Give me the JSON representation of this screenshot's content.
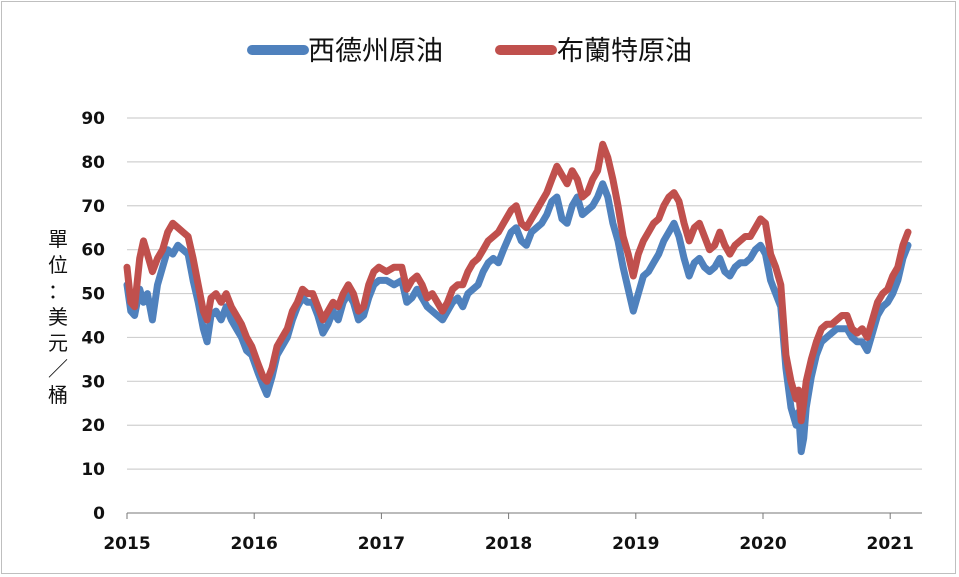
{
  "chart_data": {
    "type": "line",
    "xlabel": "",
    "ylabel": "單位：美元／桶",
    "ylim": [
      0,
      90
    ],
    "yticks": [
      0,
      10,
      20,
      30,
      40,
      50,
      60,
      70,
      80,
      90
    ],
    "xlim": [
      2015,
      2021.25
    ],
    "xticks": [
      2015,
      2016,
      2017,
      2018,
      2019,
      2020,
      2021
    ],
    "xtick_labels": [
      "2015",
      "2016",
      "2017",
      "2018",
      "2019",
      "2020",
      "2021"
    ],
    "grid": true,
    "legend": "top",
    "series": [
      {
        "name": "西德州原油",
        "color": "#4f81bd",
        "points": [
          [
            2015.0,
            52
          ],
          [
            2015.03,
            46
          ],
          [
            2015.06,
            45
          ],
          [
            2015.1,
            51
          ],
          [
            2015.13,
            48
          ],
          [
            2015.16,
            50
          ],
          [
            2015.2,
            44
          ],
          [
            2015.24,
            52
          ],
          [
            2015.28,
            56
          ],
          [
            2015.32,
            60
          ],
          [
            2015.36,
            59
          ],
          [
            2015.4,
            61
          ],
          [
            2015.44,
            60
          ],
          [
            2015.48,
            59
          ],
          [
            2015.52,
            53
          ],
          [
            2015.56,
            48
          ],
          [
            2015.6,
            42
          ],
          [
            2015.63,
            39
          ],
          [
            2015.66,
            45
          ],
          [
            2015.7,
            46
          ],
          [
            2015.74,
            44
          ],
          [
            2015.78,
            47
          ],
          [
            2015.82,
            44
          ],
          [
            2015.86,
            42
          ],
          [
            2015.9,
            40
          ],
          [
            2015.94,
            37
          ],
          [
            2015.98,
            36
          ],
          [
            2016.03,
            32
          ],
          [
            2016.07,
            29
          ],
          [
            2016.1,
            27
          ],
          [
            2016.14,
            31
          ],
          [
            2016.18,
            36
          ],
          [
            2016.22,
            38
          ],
          [
            2016.26,
            40
          ],
          [
            2016.3,
            44
          ],
          [
            2016.34,
            47
          ],
          [
            2016.38,
            49
          ],
          [
            2016.42,
            48
          ],
          [
            2016.46,
            48
          ],
          [
            2016.5,
            45
          ],
          [
            2016.54,
            41
          ],
          [
            2016.58,
            43
          ],
          [
            2016.62,
            46
          ],
          [
            2016.66,
            44
          ],
          [
            2016.7,
            48
          ],
          [
            2016.74,
            50
          ],
          [
            2016.78,
            48
          ],
          [
            2016.82,
            44
          ],
          [
            2016.86,
            45
          ],
          [
            2016.9,
            49
          ],
          [
            2016.94,
            52
          ],
          [
            2016.98,
            53
          ],
          [
            2017.04,
            53
          ],
          [
            2017.1,
            52
          ],
          [
            2017.16,
            53
          ],
          [
            2017.2,
            48
          ],
          [
            2017.24,
            49
          ],
          [
            2017.28,
            51
          ],
          [
            2017.32,
            49
          ],
          [
            2017.36,
            47
          ],
          [
            2017.4,
            46
          ],
          [
            2017.44,
            45
          ],
          [
            2017.48,
            44
          ],
          [
            2017.52,
            46
          ],
          [
            2017.56,
            48
          ],
          [
            2017.6,
            49
          ],
          [
            2017.64,
            47
          ],
          [
            2017.68,
            50
          ],
          [
            2017.72,
            51
          ],
          [
            2017.76,
            52
          ],
          [
            2017.8,
            55
          ],
          [
            2017.84,
            57
          ],
          [
            2017.88,
            58
          ],
          [
            2017.92,
            57
          ],
          [
            2017.96,
            60
          ],
          [
            2018.02,
            64
          ],
          [
            2018.06,
            65
          ],
          [
            2018.1,
            62
          ],
          [
            2018.14,
            61
          ],
          [
            2018.18,
            64
          ],
          [
            2018.22,
            65
          ],
          [
            2018.26,
            66
          ],
          [
            2018.3,
            68
          ],
          [
            2018.34,
            71
          ],
          [
            2018.38,
            72
          ],
          [
            2018.42,
            67
          ],
          [
            2018.46,
            66
          ],
          [
            2018.5,
            70
          ],
          [
            2018.54,
            72
          ],
          [
            2018.58,
            68
          ],
          [
            2018.62,
            69
          ],
          [
            2018.66,
            70
          ],
          [
            2018.7,
            72
          ],
          [
            2018.74,
            75
          ],
          [
            2018.78,
            72
          ],
          [
            2018.82,
            66
          ],
          [
            2018.86,
            62
          ],
          [
            2018.9,
            56
          ],
          [
            2018.94,
            51
          ],
          [
            2018.98,
            46
          ],
          [
            2019.02,
            50
          ],
          [
            2019.06,
            54
          ],
          [
            2019.1,
            55
          ],
          [
            2019.14,
            57
          ],
          [
            2019.18,
            59
          ],
          [
            2019.22,
            62
          ],
          [
            2019.26,
            64
          ],
          [
            2019.3,
            66
          ],
          [
            2019.34,
            63
          ],
          [
            2019.38,
            58
          ],
          [
            2019.42,
            54
          ],
          [
            2019.46,
            57
          ],
          [
            2019.5,
            58
          ],
          [
            2019.54,
            56
          ],
          [
            2019.58,
            55
          ],
          [
            2019.62,
            56
          ],
          [
            2019.66,
            58
          ],
          [
            2019.7,
            55
          ],
          [
            2019.74,
            54
          ],
          [
            2019.78,
            56
          ],
          [
            2019.82,
            57
          ],
          [
            2019.86,
            57
          ],
          [
            2019.9,
            58
          ],
          [
            2019.94,
            60
          ],
          [
            2019.98,
            61
          ],
          [
            2020.02,
            59
          ],
          [
            2020.06,
            53
          ],
          [
            2020.1,
            50
          ],
          [
            2020.14,
            47
          ],
          [
            2020.18,
            33
          ],
          [
            2020.22,
            24
          ],
          [
            2020.26,
            20
          ],
          [
            2020.28,
            23
          ],
          [
            2020.3,
            14
          ],
          [
            2020.32,
            17
          ],
          [
            2020.34,
            24
          ],
          [
            2020.38,
            31
          ],
          [
            2020.42,
            36
          ],
          [
            2020.46,
            39
          ],
          [
            2020.5,
            40
          ],
          [
            2020.54,
            41
          ],
          [
            2020.58,
            42
          ],
          [
            2020.62,
            42
          ],
          [
            2020.66,
            42
          ],
          [
            2020.7,
            40
          ],
          [
            2020.74,
            39
          ],
          [
            2020.78,
            39
          ],
          [
            2020.82,
            37
          ],
          [
            2020.86,
            41
          ],
          [
            2020.9,
            45
          ],
          [
            2020.94,
            47
          ],
          [
            2020.98,
            48
          ],
          [
            2021.02,
            50
          ],
          [
            2021.06,
            53
          ],
          [
            2021.1,
            58
          ],
          [
            2021.14,
            61
          ]
        ]
      },
      {
        "name": "布蘭特原油",
        "color": "#c0504d",
        "points": [
          [
            2015.0,
            56
          ],
          [
            2015.03,
            48
          ],
          [
            2015.06,
            47
          ],
          [
            2015.1,
            58
          ],
          [
            2015.13,
            62
          ],
          [
            2015.16,
            59
          ],
          [
            2015.2,
            55
          ],
          [
            2015.24,
            58
          ],
          [
            2015.28,
            60
          ],
          [
            2015.32,
            64
          ],
          [
            2015.36,
            66
          ],
          [
            2015.4,
            65
          ],
          [
            2015.44,
            64
          ],
          [
            2015.48,
            63
          ],
          [
            2015.52,
            58
          ],
          [
            2015.56,
            52
          ],
          [
            2015.6,
            46
          ],
          [
            2015.63,
            44
          ],
          [
            2015.66,
            49
          ],
          [
            2015.7,
            50
          ],
          [
            2015.74,
            48
          ],
          [
            2015.78,
            50
          ],
          [
            2015.82,
            47
          ],
          [
            2015.86,
            45
          ],
          [
            2015.9,
            43
          ],
          [
            2015.94,
            40
          ],
          [
            2015.98,
            38
          ],
          [
            2016.03,
            34
          ],
          [
            2016.07,
            31
          ],
          [
            2016.1,
            30
          ],
          [
            2016.14,
            33
          ],
          [
            2016.18,
            38
          ],
          [
            2016.22,
            40
          ],
          [
            2016.26,
            42
          ],
          [
            2016.3,
            46
          ],
          [
            2016.34,
            48
          ],
          [
            2016.38,
            51
          ],
          [
            2016.42,
            50
          ],
          [
            2016.46,
            50
          ],
          [
            2016.5,
            47
          ],
          [
            2016.54,
            44
          ],
          [
            2016.58,
            46
          ],
          [
            2016.62,
            48
          ],
          [
            2016.66,
            47
          ],
          [
            2016.7,
            50
          ],
          [
            2016.74,
            52
          ],
          [
            2016.78,
            50
          ],
          [
            2016.82,
            46
          ],
          [
            2016.86,
            47
          ],
          [
            2016.9,
            52
          ],
          [
            2016.94,
            55
          ],
          [
            2016.98,
            56
          ],
          [
            2017.04,
            55
          ],
          [
            2017.1,
            56
          ],
          [
            2017.16,
            56
          ],
          [
            2017.2,
            51
          ],
          [
            2017.24,
            53
          ],
          [
            2017.28,
            54
          ],
          [
            2017.32,
            52
          ],
          [
            2017.36,
            49
          ],
          [
            2017.4,
            50
          ],
          [
            2017.44,
            48
          ],
          [
            2017.48,
            46
          ],
          [
            2017.52,
            48
          ],
          [
            2017.56,
            51
          ],
          [
            2017.6,
            52
          ],
          [
            2017.64,
            52
          ],
          [
            2017.68,
            55
          ],
          [
            2017.72,
            57
          ],
          [
            2017.76,
            58
          ],
          [
            2017.8,
            60
          ],
          [
            2017.84,
            62
          ],
          [
            2017.88,
            63
          ],
          [
            2017.92,
            64
          ],
          [
            2017.96,
            66
          ],
          [
            2018.02,
            69
          ],
          [
            2018.06,
            70
          ],
          [
            2018.1,
            66
          ],
          [
            2018.14,
            65
          ],
          [
            2018.18,
            67
          ],
          [
            2018.22,
            69
          ],
          [
            2018.26,
            71
          ],
          [
            2018.3,
            73
          ],
          [
            2018.34,
            76
          ],
          [
            2018.38,
            79
          ],
          [
            2018.42,
            77
          ],
          [
            2018.46,
            75
          ],
          [
            2018.5,
            78
          ],
          [
            2018.54,
            76
          ],
          [
            2018.58,
            72
          ],
          [
            2018.62,
            73
          ],
          [
            2018.66,
            76
          ],
          [
            2018.7,
            78
          ],
          [
            2018.74,
            84
          ],
          [
            2018.78,
            81
          ],
          [
            2018.82,
            76
          ],
          [
            2018.86,
            70
          ],
          [
            2018.9,
            63
          ],
          [
            2018.94,
            59
          ],
          [
            2018.98,
            54
          ],
          [
            2019.02,
            59
          ],
          [
            2019.06,
            62
          ],
          [
            2019.1,
            64
          ],
          [
            2019.14,
            66
          ],
          [
            2019.18,
            67
          ],
          [
            2019.22,
            70
          ],
          [
            2019.26,
            72
          ],
          [
            2019.3,
            73
          ],
          [
            2019.34,
            71
          ],
          [
            2019.38,
            66
          ],
          [
            2019.42,
            62
          ],
          [
            2019.46,
            65
          ],
          [
            2019.5,
            66
          ],
          [
            2019.54,
            63
          ],
          [
            2019.58,
            60
          ],
          [
            2019.62,
            61
          ],
          [
            2019.66,
            64
          ],
          [
            2019.7,
            61
          ],
          [
            2019.74,
            59
          ],
          [
            2019.78,
            61
          ],
          [
            2019.82,
            62
          ],
          [
            2019.86,
            63
          ],
          [
            2019.9,
            63
          ],
          [
            2019.94,
            65
          ],
          [
            2019.98,
            67
          ],
          [
            2020.02,
            66
          ],
          [
            2020.06,
            59
          ],
          [
            2020.1,
            56
          ],
          [
            2020.14,
            52
          ],
          [
            2020.18,
            36
          ],
          [
            2020.22,
            30
          ],
          [
            2020.26,
            26
          ],
          [
            2020.28,
            28
          ],
          [
            2020.3,
            21
          ],
          [
            2020.32,
            25
          ],
          [
            2020.34,
            30
          ],
          [
            2020.38,
            35
          ],
          [
            2020.42,
            39
          ],
          [
            2020.46,
            42
          ],
          [
            2020.5,
            43
          ],
          [
            2020.54,
            43
          ],
          [
            2020.58,
            44
          ],
          [
            2020.62,
            45
          ],
          [
            2020.66,
            45
          ],
          [
            2020.7,
            42
          ],
          [
            2020.74,
            41
          ],
          [
            2020.78,
            42
          ],
          [
            2020.82,
            40
          ],
          [
            2020.86,
            44
          ],
          [
            2020.9,
            48
          ],
          [
            2020.94,
            50
          ],
          [
            2020.98,
            51
          ],
          [
            2021.02,
            54
          ],
          [
            2021.06,
            56
          ],
          [
            2021.1,
            61
          ],
          [
            2021.14,
            64
          ]
        ]
      }
    ]
  }
}
